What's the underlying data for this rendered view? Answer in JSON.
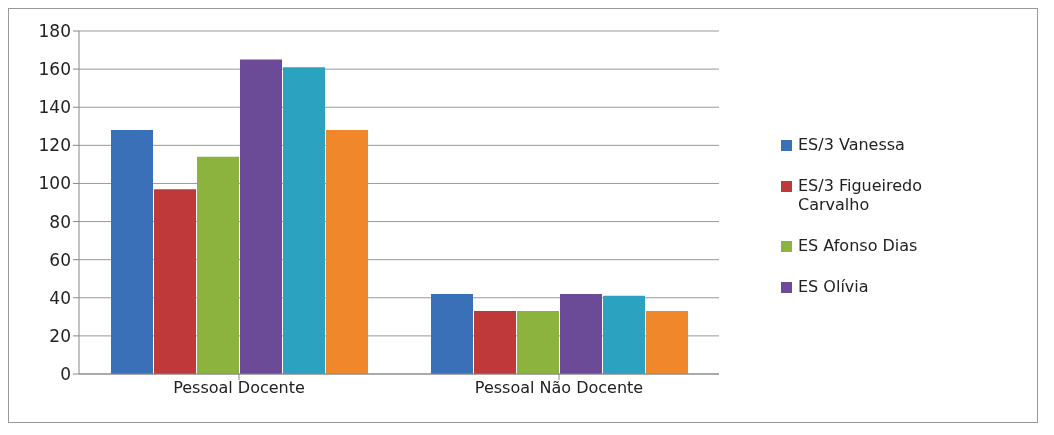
{
  "chart_data": {
    "type": "bar",
    "categories": [
      "Pessoal Docente",
      "Pessoal Não Docente"
    ],
    "series": [
      {
        "name": "ES/3 Vanessa",
        "color": "#3a70b8",
        "values": [
          128,
          42
        ]
      },
      {
        "name": "ES/3 Figueiredo Carvalho",
        "color": "#c0393a",
        "values": [
          97,
          33
        ]
      },
      {
        "name": "ES Afonso Dias",
        "color": "#8db33f",
        "values": [
          114,
          33
        ]
      },
      {
        "name": "ES Olívia",
        "color": "#6b4a98",
        "values": [
          165,
          42
        ]
      },
      {
        "color": "#2aa2c0",
        "values": [
          161,
          41
        ]
      },
      {
        "color": "#f0872a",
        "values": [
          128,
          33
        ]
      }
    ],
    "ylim": [
      0,
      180
    ],
    "yticks": [
      0,
      20,
      40,
      60,
      80,
      100,
      120,
      140,
      160,
      180
    ],
    "grid": "y",
    "legend": "right"
  }
}
